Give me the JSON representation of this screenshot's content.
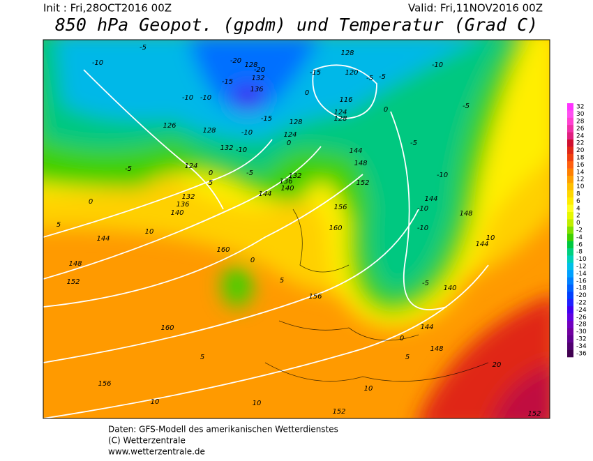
{
  "header": {
    "init": "Init : Fri,28OCT2016 00Z",
    "valid": "Valid: Fri,11NOV2016 00Z",
    "title": "850 hPa Geopot. (gpdm) und Temperatur (Grad C)"
  },
  "footer": {
    "line1": "Daten: GFS-Modell des amerikanischen Wetterdienstes",
    "line2": "(C) Wetterzentrale",
    "line3": "www.wetterzentrale.de"
  },
  "colorbar": [
    {
      "value": 32,
      "color": "#ff33ff"
    },
    {
      "value": 30,
      "color": "#ff4ff0"
    },
    {
      "value": 28,
      "color": "#ff40d0"
    },
    {
      "value": 26,
      "color": "#f030a8"
    },
    {
      "value": 24,
      "color": "#e02080"
    },
    {
      "value": 22,
      "color": "#d01030"
    },
    {
      "value": 20,
      "color": "#e02818"
    },
    {
      "value": 18,
      "color": "#f04010"
    },
    {
      "value": 16,
      "color": "#ff6010"
    },
    {
      "value": 14,
      "color": "#ff8000"
    },
    {
      "value": 12,
      "color": "#ffa000"
    },
    {
      "value": 10,
      "color": "#ffbf00"
    },
    {
      "value": 8,
      "color": "#ffd700"
    },
    {
      "value": 6,
      "color": "#ffec00"
    },
    {
      "value": 4,
      "color": "#ffff20"
    },
    {
      "value": 2,
      "color": "#e6f800"
    },
    {
      "value": 0,
      "color": "#c0ee00"
    },
    {
      "value": -2,
      "color": "#80e000"
    },
    {
      "value": -4,
      "color": "#40d000"
    },
    {
      "value": -6,
      "color": "#00c840"
    },
    {
      "value": -8,
      "color": "#00d080"
    },
    {
      "value": -10,
      "color": "#00d0b8"
    },
    {
      "value": -12,
      "color": "#00c0e8"
    },
    {
      "value": -14,
      "color": "#00a0ff"
    },
    {
      "value": -16,
      "color": "#0080ff"
    },
    {
      "value": -18,
      "color": "#0060ff"
    },
    {
      "value": -20,
      "color": "#0040ff"
    },
    {
      "value": -22,
      "color": "#2020ff"
    },
    {
      "value": -24,
      "color": "#4000f0"
    },
    {
      "value": -26,
      "color": "#6000e0"
    },
    {
      "value": -28,
      "color": "#7000c0"
    },
    {
      "value": -30,
      "color": "#7000a0"
    },
    {
      "value": -32,
      "color": "#600090"
    },
    {
      "value": -34,
      "color": "#500070"
    },
    {
      "value": -36,
      "color": "#400050"
    }
  ],
  "contour_labels": [
    -5,
    -10,
    -20,
    128,
    -20,
    132,
    -15,
    136,
    -10,
    -10,
    -15,
    120,
    -5,
    -5,
    128,
    -10,
    0,
    116,
    0,
    124,
    128,
    -5,
    126,
    128,
    -15,
    128,
    -10,
    124,
    0,
    132,
    -10,
    -5,
    144,
    -5,
    124,
    0,
    5,
    148,
    -10,
    -5,
    136,
    132,
    140,
    152,
    144,
    132,
    136,
    140,
    0,
    144,
    -10,
    156,
    148,
    5,
    10,
    160,
    -10,
    10,
    144,
    144,
    160,
    0,
    148,
    152,
    5,
    -5,
    140,
    156,
    160,
    144,
    0,
    148,
    5,
    5,
    20,
    156,
    10,
    10,
    10,
    152,
    152
  ]
}
